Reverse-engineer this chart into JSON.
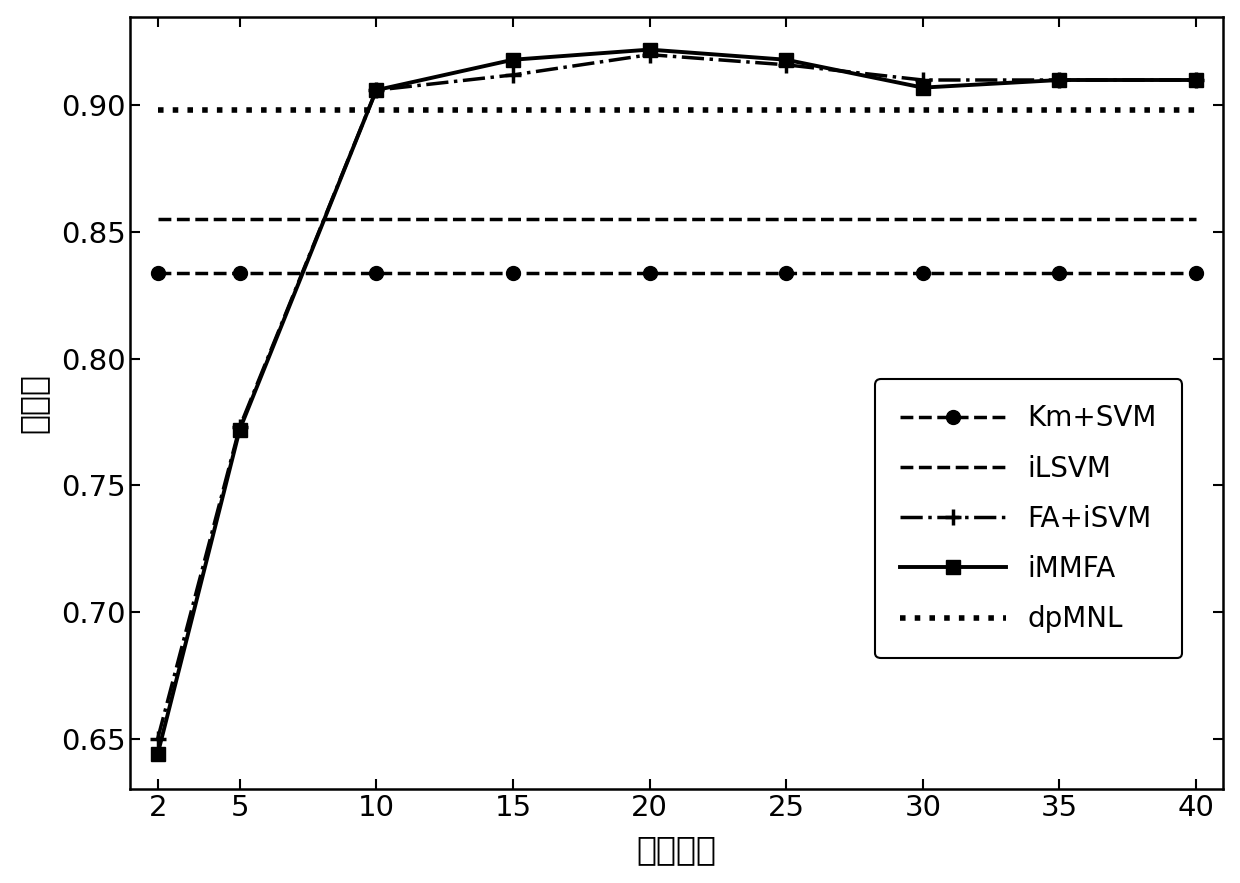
{
  "x": [
    2,
    5,
    10,
    15,
    20,
    25,
    30,
    35,
    40
  ],
  "km_svm": [
    0.834,
    0.834,
    0.834,
    0.834,
    0.834,
    0.834,
    0.834,
    0.834,
    0.834
  ],
  "ilsvm": [
    0.855,
    0.855,
    0.855,
    0.855,
    0.855,
    0.855,
    0.855,
    0.855,
    0.855
  ],
  "fa_isvm": [
    0.65,
    0.773,
    0.906,
    0.912,
    0.92,
    0.916,
    0.91,
    0.91,
    0.91
  ],
  "immfa": [
    0.644,
    0.772,
    0.906,
    0.918,
    0.922,
    0.918,
    0.907,
    0.91,
    0.91
  ],
  "dpmnl": [
    0.898,
    0.898,
    0.898,
    0.898,
    0.898,
    0.898,
    0.898,
    0.898,
    0.898
  ],
  "xlabel": "特征维数",
  "ylabel": "识别率",
  "xlim": [
    1,
    41
  ],
  "ylim": [
    0.63,
    0.935
  ],
  "xticks": [
    2,
    5,
    10,
    15,
    20,
    25,
    30,
    35,
    40
  ],
  "yticks": [
    0.65,
    0.7,
    0.75,
    0.8,
    0.85,
    0.9
  ],
  "legend_labels": [
    "Km+SVM",
    "iLSVM",
    "FA+iSVM",
    "iMMFA",
    "dpMNL"
  ],
  "line_color": "#000000",
  "fontsize_label": 24,
  "fontsize_tick": 21,
  "fontsize_legend": 20
}
